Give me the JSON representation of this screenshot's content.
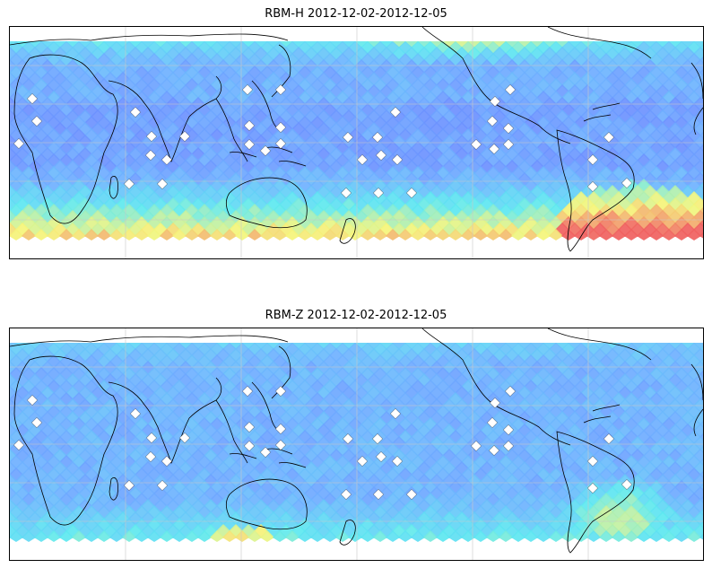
{
  "panels": [
    {
      "id": "top",
      "title": "RBM-H 2012-12-02-2012-12-05",
      "variable": "RBM-H"
    },
    {
      "id": "bottom",
      "title": "RBM-Z 2012-12-02-2012-12-05",
      "variable": "RBM-Z"
    }
  ],
  "colors": {
    "low": "#6a6cff",
    "mid_low": "#6fb0ff",
    "mid": "#5de8f0",
    "mid_high": "#f5f57a",
    "high": "#f06060",
    "coast": "#000000",
    "grid": "#c8c8c8"
  }
}
